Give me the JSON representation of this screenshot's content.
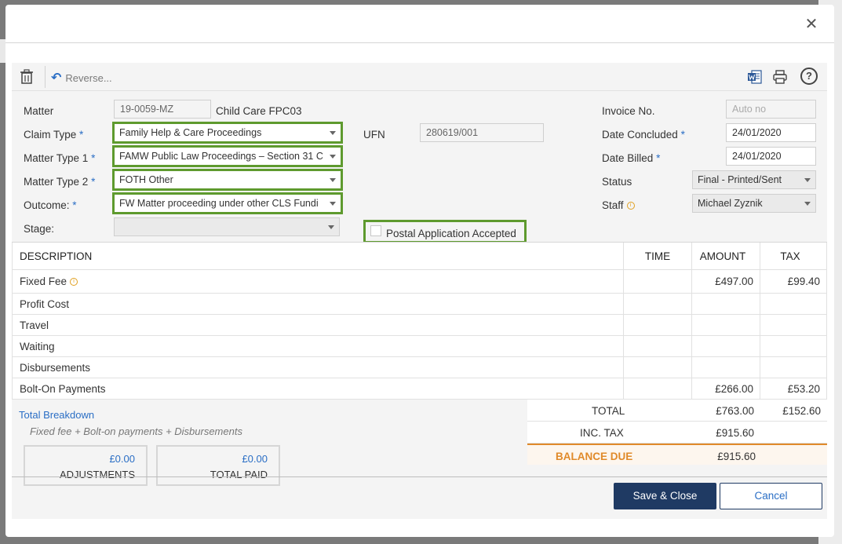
{
  "toolbar": {
    "reverse_label": "Reverse..."
  },
  "form": {
    "matter_label": "Matter",
    "matter_value": "19-0059-MZ",
    "matter_desc": "Child Care FPC03",
    "claim_type_label": "Claim Type",
    "claim_type_value": "Family Help & Care Proceedings",
    "ufn_label": "UFN",
    "ufn_value": "280619/001",
    "matter_type1_label": "Matter Type 1",
    "matter_type1_value": "FAMW Public Law Proceedings – Section 31 C",
    "matter_type2_label": "Matter Type 2",
    "matter_type2_value": "FOTH Other",
    "outcome_label": "Outcome:",
    "outcome_value": "FW Matter proceeding under other CLS Fundi",
    "stage_label": "Stage:",
    "stage_value": "",
    "postal_label": "Postal Application Accepted",
    "invoice_no_label": "Invoice No.",
    "invoice_no_placeholder": "Auto no",
    "date_concluded_label": "Date Concluded",
    "date_concluded_value": "24/01/2020",
    "date_billed_label": "Date Billed",
    "date_billed_value": "24/01/2020",
    "status_label": "Status",
    "status_value": "Final - Printed/Sent",
    "staff_label": "Staff",
    "staff_value": "Michael Zyznik",
    "required_mark": "*"
  },
  "table": {
    "headers": {
      "description": "DESCRIPTION",
      "time": "TIME",
      "amount": "AMOUNT",
      "tax": "TAX"
    },
    "rows": [
      {
        "description": "Fixed Fee",
        "time": "",
        "amount": "£497.00",
        "tax": "£99.40"
      },
      {
        "description": "Profit Cost",
        "time": "",
        "amount": "",
        "tax": ""
      },
      {
        "description": "Travel",
        "time": "",
        "amount": "",
        "tax": ""
      },
      {
        "description": "Waiting",
        "time": "",
        "amount": "",
        "tax": ""
      },
      {
        "description": "Disbursements",
        "time": "",
        "amount": "",
        "tax": ""
      },
      {
        "description": "Bolt-On Payments",
        "time": "",
        "amount": "£266.00",
        "tax": "£53.20"
      }
    ]
  },
  "breakdown": {
    "link": "Total Breakdown",
    "subtext": "Fixed fee + Bolt-on payments + Disbursements",
    "adjustments_value": "£0.00",
    "adjustments_label": "ADJUSTMENTS",
    "total_paid_value": "£0.00",
    "total_paid_label": "TOTAL PAID"
  },
  "totals": {
    "total_label": "TOTAL",
    "total_amount": "£763.00",
    "total_tax": "£152.60",
    "inc_tax_label": "INC. TAX",
    "inc_tax_amount": "£915.60",
    "balance_label": "BALANCE DUE",
    "balance_amount": "£915.60"
  },
  "buttons": {
    "save": "Save & Close",
    "cancel": "Cancel"
  },
  "colors": {
    "highlight": "#5e9a2e",
    "accent": "#2a6ec5",
    "primary": "#1f3a63",
    "balance": "#e08a2a"
  }
}
